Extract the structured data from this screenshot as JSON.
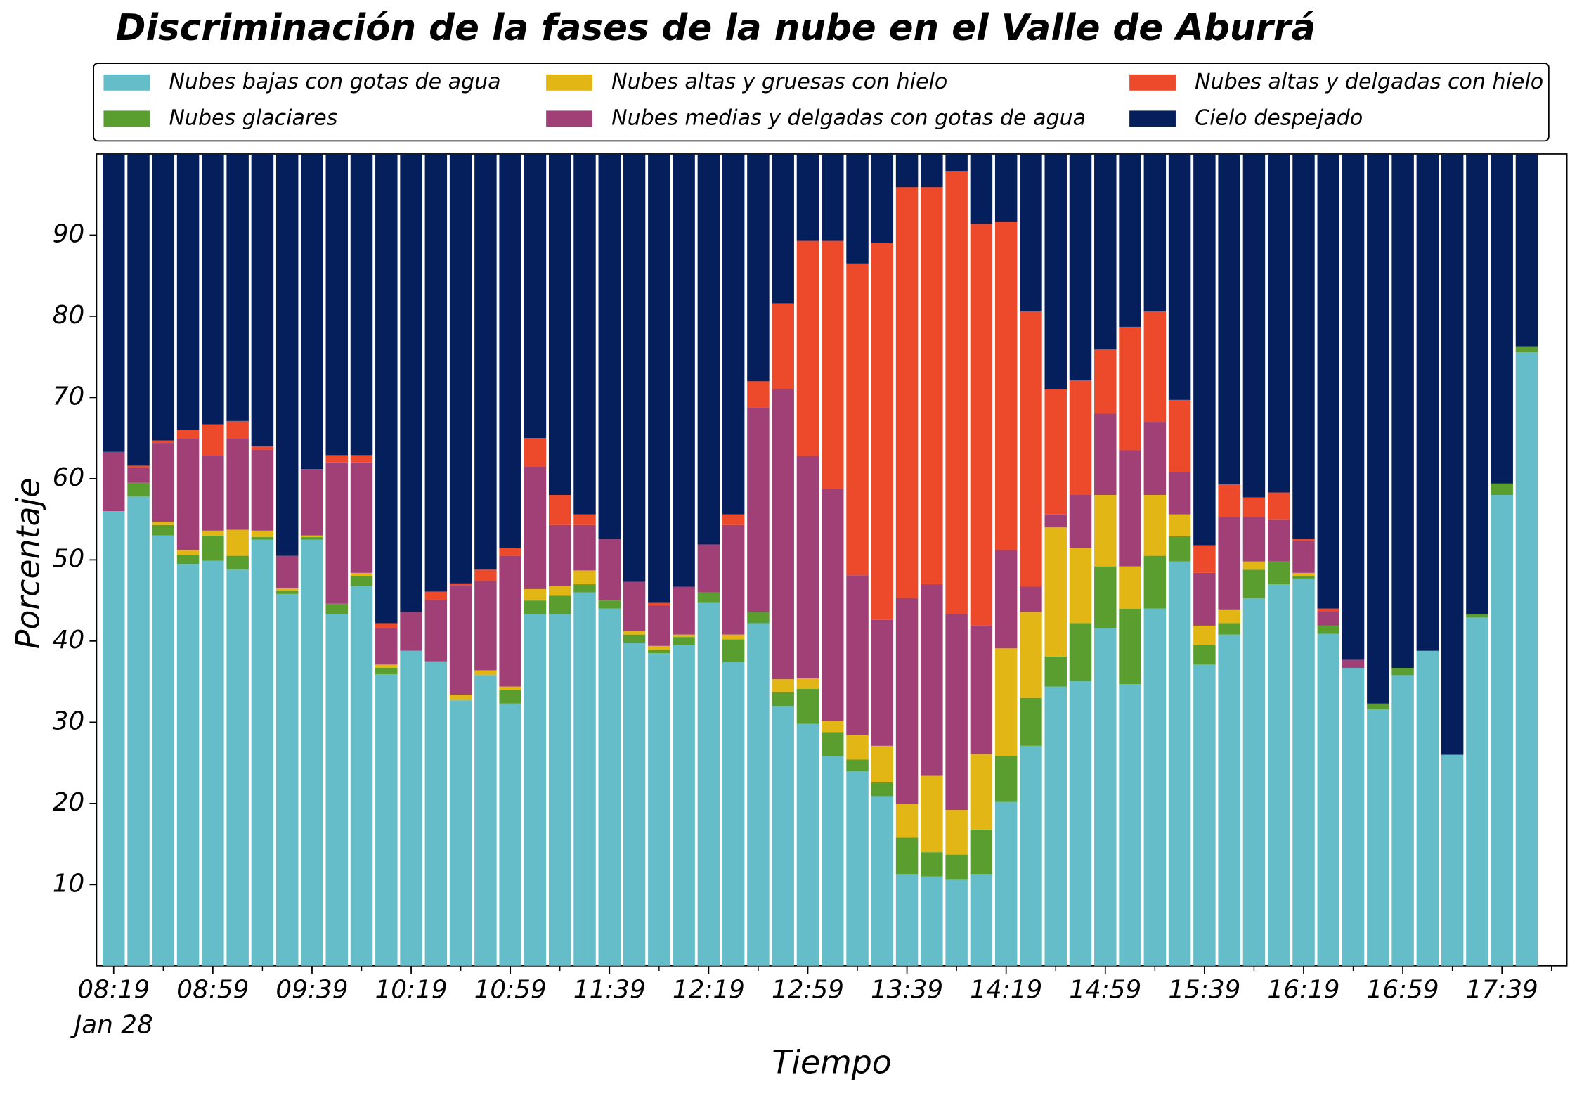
{
  "chart_data": {
    "type": "bar",
    "stacked": true,
    "title": "Discriminación de la fases de la nube en el Valle de Aburrá",
    "xlabel": "Tiempo",
    "ylabel": "Porcentaje",
    "date_label": "Jan 28",
    "legend": "top",
    "categories": [
      "08:19",
      "08:29",
      "08:39",
      "08:49",
      "08:59",
      "09:09",
      "09:19",
      "09:29",
      "09:39",
      "09:49",
      "09:59",
      "10:09",
      "10:19",
      "10:29",
      "10:39",
      "10:49",
      "10:59",
      "11:09",
      "11:19",
      "11:29",
      "11:39",
      "11:49",
      "11:59",
      "12:09",
      "12:19",
      "12:29",
      "12:39",
      "12:49",
      "12:59",
      "13:09",
      "13:19",
      "13:29",
      "13:39",
      "13:49",
      "13:59",
      "14:09",
      "14:19",
      "14:29",
      "14:39",
      "14:49",
      "14:59",
      "15:09",
      "15:19",
      "15:29",
      "15:39",
      "15:49",
      "15:59",
      "16:09",
      "16:19",
      "16:29",
      "16:39",
      "16:49",
      "16:59",
      "17:09",
      "17:19",
      "17:29",
      "17:39",
      "17:49"
    ],
    "xticks": [
      "08:19",
      "08:59",
      "09:39",
      "10:19",
      "10:59",
      "11:39",
      "12:19",
      "12:59",
      "13:39",
      "14:19",
      "14:59",
      "15:39",
      "16:19",
      "16:59",
      "17:39"
    ],
    "ylim": [
      0,
      100
    ],
    "yticks": [
      10,
      20,
      30,
      40,
      50,
      60,
      70,
      80,
      90
    ],
    "series": [
      {
        "name": "Nubes bajas con gotas de agua",
        "color": "#64bdc8",
        "values": [
          56,
          57.8,
          53,
          49.5,
          49.9,
          48.8,
          52.5,
          45.8,
          52.5,
          43.3,
          46.8,
          35.9,
          38.8,
          37.5,
          32.7,
          35.8,
          32.3,
          43.3,
          43.3,
          46,
          44,
          39.8,
          38.5,
          39.5,
          44.7,
          37.4,
          42.2,
          32,
          29.8,
          25.8,
          24,
          20.9,
          11.3,
          11,
          10.6,
          11.3,
          20.2,
          27.1,
          34.4,
          35.1,
          41.6,
          34.7,
          44,
          49.8,
          37.1,
          40.8,
          45.3,
          47,
          47.7,
          40.9,
          36.7,
          31.6,
          35.8,
          38.8,
          26,
          42.9,
          58,
          75.6
        ]
      },
      {
        "name": "Nubes glaciares",
        "color": "#5a9e2f",
        "values": [
          0,
          1.7,
          1.3,
          1.1,
          3.1,
          1.7,
          0.3,
          0.4,
          0.3,
          1.3,
          1.2,
          0.8,
          0,
          0,
          0,
          0,
          1.7,
          1.7,
          2.3,
          1,
          1,
          1,
          0.4,
          1,
          1.3,
          2.8,
          1.4,
          1.7,
          4.3,
          3,
          1.4,
          1.7,
          4.5,
          3,
          3.1,
          5.5,
          5.6,
          5.9,
          3.7,
          7.1,
          7.6,
          9.3,
          6.5,
          3.1,
          2.4,
          1.4,
          3.5,
          2.8,
          0.3,
          1,
          0,
          0.7,
          0.9,
          0,
          0,
          0.4,
          1.4,
          0.7
        ]
      },
      {
        "name": "Nubes altas y gruesas con hielo",
        "color": "#e2b614",
        "values": [
          0,
          0,
          0.4,
          0.6,
          0.6,
          3.2,
          0.8,
          0.3,
          0.2,
          0,
          0.4,
          0.4,
          0,
          0,
          0.7,
          0.6,
          0.4,
          1.4,
          1.2,
          1.7,
          0,
          0.4,
          0.5,
          0.3,
          0,
          0.6,
          0,
          1.6,
          1.3,
          1.4,
          3,
          4.5,
          4.1,
          9.4,
          5.5,
          9.3,
          13.3,
          10.6,
          15.9,
          9.3,
          8.8,
          5.2,
          7.5,
          2.7,
          2.4,
          1.7,
          1,
          0,
          0.4,
          0,
          0,
          0,
          0,
          0,
          0,
          0,
          0,
          0
        ]
      },
      {
        "name": "Nubes medias y delgadas con gotas de agua",
        "color": "#a04077",
        "values": [
          7.3,
          1.8,
          9.7,
          13.8,
          9.3,
          11.3,
          10,
          4,
          8.2,
          17.4,
          13.6,
          4.5,
          4.8,
          7.6,
          13.5,
          11,
          16.1,
          15.1,
          7.5,
          5.6,
          7.6,
          6.1,
          5,
          5.9,
          5.9,
          13.5,
          25.2,
          35.7,
          27.4,
          28.5,
          19.7,
          15.5,
          25.4,
          23.6,
          24.1,
          15.8,
          12.1,
          3.1,
          1.6,
          6.5,
          10,
          14.3,
          9,
          5.2,
          6.5,
          11.4,
          5.5,
          5.2,
          3.9,
          1.8,
          1,
          0,
          0,
          0,
          0,
          0,
          0,
          0
        ]
      },
      {
        "name": "Nubes altas y delgadas con hielo",
        "color": "#ec4a2a",
        "values": [
          0,
          0.3,
          0.3,
          1,
          3.8,
          2.1,
          0.4,
          0,
          0,
          0.9,
          0.9,
          0.6,
          0,
          1,
          0.2,
          1.4,
          1,
          3.5,
          3.7,
          1.3,
          0,
          0,
          0.3,
          0,
          0,
          1.3,
          3.2,
          10.6,
          26.5,
          30.6,
          38.4,
          46.4,
          50.6,
          48.9,
          54.6,
          49.5,
          40.4,
          33.9,
          15.4,
          14.1,
          7.9,
          15.2,
          13.6,
          8.9,
          3.4,
          4,
          2.4,
          3.3,
          0.3,
          0.3,
          0,
          0,
          0,
          0,
          0,
          0,
          0,
          0
        ]
      },
      {
        "name": "Cielo despejado",
        "color": "#041f5c",
        "values": [
          36.7,
          38.4,
          35.3,
          34,
          33.3,
          32.9,
          36,
          49.5,
          38.8,
          37.1,
          37.1,
          57.8,
          56.4,
          53.9,
          52.9,
          51.2,
          48.5,
          35,
          42,
          44.4,
          47.4,
          52.7,
          55.3,
          53.3,
          48.1,
          44.4,
          28,
          18.4,
          10.7,
          10.7,
          13.5,
          11,
          4.1,
          4.1,
          2.1,
          8.6,
          8.4,
          19.4,
          29,
          27.9,
          24.1,
          21.3,
          19.4,
          30.3,
          48.2,
          40.7,
          42.3,
          41.7,
          47.4,
          56,
          62.3,
          67.7,
          63.3,
          61.2,
          74,
          56.7,
          40.6,
          23.7
        ]
      }
    ]
  }
}
